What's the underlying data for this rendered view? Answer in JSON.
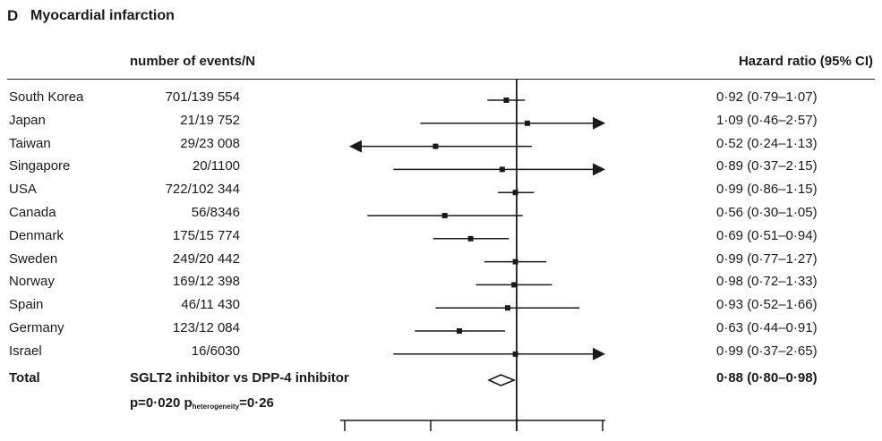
{
  "panel": {
    "letter": "D",
    "title": "Myocardial infarction"
  },
  "headers": {
    "events": "number of events/N",
    "hr": "Hazard ratio (95% CI)"
  },
  "chart_data": {
    "type": "forest",
    "title": "Myocardial infarction",
    "reference_line": 1.0,
    "xlim": [
      0.4,
      2.5
    ],
    "x_ticks": [
      0.5,
      1.0
    ],
    "rows": [
      {
        "label": "South Korea",
        "events": "701/139 554",
        "hr": 0.92,
        "lo": 0.79,
        "hi": 1.07,
        "hr_text": "0·92 (0·79–1·07)"
      },
      {
        "label": "Japan",
        "events": "21/19 752",
        "hr": 1.09,
        "lo": 0.46,
        "hi": 2.57,
        "hr_text": "1·09 (0·46–2·57)"
      },
      {
        "label": "Taiwan",
        "events": "29/23 008",
        "hr": 0.52,
        "lo": 0.24,
        "hi": 1.13,
        "hr_text": "0·52 (0·24–1·13)"
      },
      {
        "label": "Singapore",
        "events": "20/1100",
        "hr": 0.89,
        "lo": 0.37,
        "hi": 2.15,
        "hr_text": "0·89 (0·37–2·15)"
      },
      {
        "label": "USA",
        "events": "722/102 344",
        "hr": 0.99,
        "lo": 0.86,
        "hi": 1.15,
        "hr_text": "0·99 (0·86–1·15)"
      },
      {
        "label": "Canada",
        "events": "56/8346",
        "hr": 0.56,
        "lo": 0.3,
        "hi": 1.05,
        "hr_text": "0·56 (0·30–1·05)"
      },
      {
        "label": "Denmark",
        "events": "175/15 774",
        "hr": 0.69,
        "lo": 0.51,
        "hi": 0.94,
        "hr_text": "0·69 (0·51–0·94)"
      },
      {
        "label": "Sweden",
        "events": "249/20 442",
        "hr": 0.99,
        "lo": 0.77,
        "hi": 1.27,
        "hr_text": "0·99 (0·77–1·27)"
      },
      {
        "label": "Norway",
        "events": "169/12 398",
        "hr": 0.98,
        "lo": 0.72,
        "hi": 1.33,
        "hr_text": "0·98 (0·72–1·33)"
      },
      {
        "label": "Spain",
        "events": "46/11 430",
        "hr": 0.93,
        "lo": 0.52,
        "hi": 1.66,
        "hr_text": "0·93 (0·52–1·66)"
      },
      {
        "label": "Germany",
        "events": "123/12 084",
        "hr": 0.63,
        "lo": 0.44,
        "hi": 0.91,
        "hr_text": "0·63 (0·44–0·91)"
      },
      {
        "label": "Israel",
        "events": "16/6030",
        "hr": 0.99,
        "lo": 0.37,
        "hi": 2.65,
        "hr_text": "0·99 (0·37–2·65)"
      }
    ],
    "total": {
      "label": "Total",
      "comparison": "SGLT2 inhibitor vs DPP-4 inhibitor",
      "hr": 0.88,
      "lo": 0.8,
      "hi": 0.98,
      "hr_text": "0·88 (0·80–0·98)",
      "p_text": "p=0·020 p",
      "p_het_sub": "heterogeneity",
      "p_het_val": "=0·26"
    }
  }
}
